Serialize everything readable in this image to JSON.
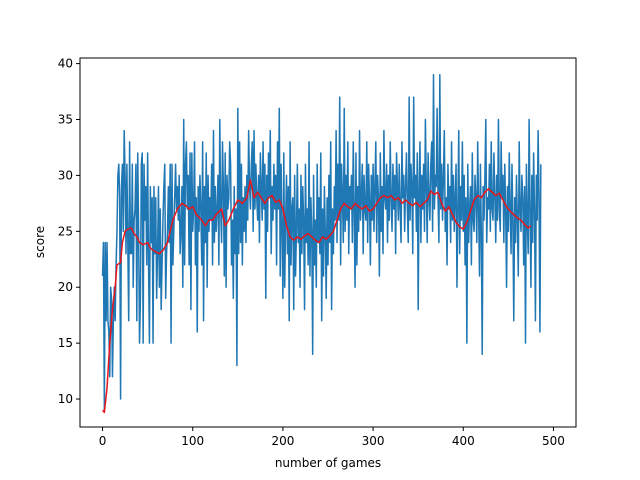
{
  "chart_data": {
    "type": "line",
    "title": "",
    "xlabel": "number of games",
    "ylabel": "score",
    "xlim": [
      -25,
      525
    ],
    "ylim": [
      7.5,
      40.5
    ],
    "xticks": [
      0,
      100,
      200,
      300,
      400,
      500
    ],
    "yticks": [
      10,
      15,
      20,
      25,
      30,
      35,
      40
    ],
    "grid": false,
    "series": [
      {
        "color": "#1f77b4",
        "style": "raw",
        "x_start": 0,
        "x_step": 1,
        "values": [
          21,
          24,
          9,
          24,
          17,
          24,
          17,
          16,
          12,
          20,
          19,
          12,
          17,
          20,
          17,
          22,
          25,
          30,
          31,
          28,
          10,
          29,
          31,
          25,
          34,
          30,
          23,
          31,
          24,
          17,
          33,
          23,
          23,
          31,
          20,
          26,
          27,
          31,
          17,
          32,
          25,
          15,
          19,
          31,
          32,
          15,
          31,
          26,
          29,
          22,
          32,
          22,
          15,
          29,
          24,
          28,
          15,
          29,
          23,
          28,
          19,
          23,
          29,
          20,
          27,
          18,
          22,
          26,
          29,
          31,
          19,
          23,
          25,
          29,
          24,
          31,
          15,
          31,
          22,
          25,
          28,
          31,
          27,
          29,
          26,
          30,
          23,
          25,
          29,
          20,
          35,
          22,
          31,
          33,
          27,
          30,
          22,
          32,
          18,
          32,
          25,
          27,
          33,
          22,
          28,
          16,
          29,
          25,
          30,
          27,
          22,
          33,
          17,
          29,
          24,
          32,
          20,
          30,
          25,
          28,
          26,
          31,
          22,
          34,
          24,
          29,
          25,
          27,
          30,
          22,
          35,
          27,
          24,
          33,
          29,
          21,
          32,
          20,
          30,
          27,
          28,
          33,
          31,
          22,
          26,
          19,
          29,
          23,
          27,
          13,
          36,
          23,
          33,
          24,
          31,
          22,
          28,
          25,
          29,
          24,
          30,
          26,
          34,
          29,
          27,
          31,
          33,
          25,
          34,
          27,
          31,
          28,
          26,
          30,
          24,
          32,
          29,
          26,
          33,
          27,
          31,
          19,
          30,
          25,
          32,
          28,
          34,
          23,
          29,
          26,
          31,
          27,
          30,
          22,
          33,
          27,
          36,
          21,
          31,
          25,
          19,
          32,
          20,
          26,
          30,
          23,
          29,
          17,
          33,
          22,
          27,
          28,
          18,
          30,
          21,
          25,
          31,
          24,
          27,
          20,
          30,
          23,
          29,
          26,
          18,
          31,
          24,
          27,
          22,
          33,
          21,
          28,
          25,
          14,
          30,
          22,
          26,
          20,
          31,
          24,
          28,
          23,
          32,
          17,
          27,
          21,
          29,
          25,
          19,
          28,
          22,
          30,
          24,
          33,
          18,
          27,
          23,
          29,
          26,
          34,
          24,
          31,
          26,
          37,
          22,
          31,
          28,
          24,
          36,
          25,
          30,
          26,
          33,
          23,
          29,
          27,
          30,
          24,
          33,
          27,
          20,
          32,
          22,
          29,
          25,
          34,
          26,
          28,
          31,
          23,
          30,
          27,
          26,
          33,
          24,
          31,
          28,
          22,
          30,
          26,
          31,
          25,
          29,
          33,
          24,
          30,
          28,
          21,
          32,
          25,
          29,
          23,
          34,
          28,
          27,
          31,
          24,
          30,
          26,
          33,
          28,
          25,
          31,
          27,
          30,
          23,
          32,
          29,
          26,
          31,
          27,
          24,
          33,
          28,
          30,
          25,
          29,
          32,
          27,
          24,
          37,
          26,
          31,
          29,
          23,
          37,
          28,
          30,
          25,
          32,
          18,
          29,
          33,
          24,
          30,
          27,
          31,
          25,
          35,
          29,
          24,
          32,
          28,
          26,
          31,
          33,
          25,
          39,
          27,
          30,
          29,
          36,
          28,
          24,
          39,
          27,
          31,
          26,
          30,
          34,
          25,
          28,
          22,
          31,
          27,
          29,
          24,
          33,
          26,
          30,
          25,
          28,
          31,
          20,
          27,
          34,
          23,
          29,
          26,
          33,
          25,
          30,
          22,
          28,
          15,
          31,
          24,
          27,
          29,
          22,
          32,
          26,
          25,
          30,
          28,
          24,
          33,
          27,
          21,
          31,
          25,
          14,
          29,
          26,
          30,
          35,
          24,
          28,
          27,
          31,
          25,
          33,
          27,
          26,
          32,
          28,
          24,
          30,
          26,
          35,
          27,
          25,
          33,
          28,
          30,
          24,
          31,
          27,
          20,
          29,
          25,
          32,
          27,
          23,
          31,
          26,
          17,
          28,
          24,
          30,
          26,
          21,
          33,
          27,
          25,
          30,
          28,
          22,
          29,
          15,
          31,
          26,
          23,
          35,
          27,
          20,
          30,
          24,
          32,
          27,
          17,
          30,
          26,
          34,
          28,
          16,
          31
        ]
      },
      {
        "color": "#e8161b",
        "style": "smoothed",
        "points": [
          [
            0,
            9
          ],
          [
            2,
            8.8
          ],
          [
            5,
            11
          ],
          [
            8,
            15
          ],
          [
            11,
            18
          ],
          [
            14,
            20
          ],
          [
            16,
            22
          ],
          [
            20,
            22.2
          ],
          [
            22,
            24
          ],
          [
            25,
            25
          ],
          [
            28,
            25.2
          ],
          [
            32,
            25.3
          ],
          [
            35,
            24.8
          ],
          [
            38,
            24.5
          ],
          [
            41,
            24
          ],
          [
            45,
            23.8
          ],
          [
            50,
            24
          ],
          [
            53,
            23.5
          ],
          [
            58,
            23.2
          ],
          [
            63,
            23
          ],
          [
            67,
            23.3
          ],
          [
            72,
            24
          ],
          [
            78,
            26
          ],
          [
            83,
            27
          ],
          [
            88,
            27.5
          ],
          [
            92,
            27.3
          ],
          [
            96,
            27
          ],
          [
            100,
            27.2
          ],
          [
            104,
            26.5
          ],
          [
            110,
            26
          ],
          [
            114,
            25.5
          ],
          [
            118,
            26
          ],
          [
            122,
            26
          ],
          [
            126,
            26.5
          ],
          [
            132,
            27
          ],
          [
            136,
            25.5
          ],
          [
            140,
            26
          ],
          [
            145,
            27
          ],
          [
            150,
            27.8
          ],
          [
            155,
            27.5
          ],
          [
            160,
            28
          ],
          [
            164,
            29.6
          ],
          [
            168,
            28
          ],
          [
            172,
            28.5
          ],
          [
            176,
            28
          ],
          [
            180,
            27.5
          ],
          [
            184,
            28
          ],
          [
            188,
            28.2
          ],
          [
            192,
            27.6
          ],
          [
            196,
            27.8
          ],
          [
            200,
            27
          ],
          [
            204,
            25.5
          ],
          [
            208,
            24.5
          ],
          [
            212,
            24.2
          ],
          [
            216,
            24.5
          ],
          [
            220,
            24.3
          ],
          [
            224,
            24.6
          ],
          [
            228,
            24.8
          ],
          [
            232,
            24.5
          ],
          [
            236,
            24.2
          ],
          [
            240,
            24
          ],
          [
            244,
            24.5
          ],
          [
            248,
            24.3
          ],
          [
            252,
            24.6
          ],
          [
            256,
            25
          ],
          [
            260,
            26
          ],
          [
            264,
            27
          ],
          [
            268,
            27.5
          ],
          [
            272,
            27.2
          ],
          [
            276,
            27
          ],
          [
            280,
            27.5
          ],
          [
            284,
            27.2
          ],
          [
            288,
            27
          ],
          [
            292,
            27.3
          ],
          [
            296,
            26.8
          ],
          [
            300,
            27
          ],
          [
            304,
            27.5
          ],
          [
            308,
            28
          ],
          [
            312,
            28.2
          ],
          [
            316,
            28
          ],
          [
            320,
            28.2
          ],
          [
            324,
            27.8
          ],
          [
            328,
            28
          ],
          [
            332,
            27.5
          ],
          [
            336,
            27.8
          ],
          [
            340,
            27.5
          ],
          [
            344,
            27.3
          ],
          [
            348,
            27.6
          ],
          [
            352,
            27.2
          ],
          [
            356,
            27.5
          ],
          [
            360,
            27.8
          ],
          [
            364,
            28.6
          ],
          [
            368,
            28.3
          ],
          [
            372,
            28.5
          ],
          [
            376,
            27.5
          ],
          [
            380,
            26.8
          ],
          [
            384,
            27.2
          ],
          [
            388,
            26.5
          ],
          [
            392,
            25.8
          ],
          [
            396,
            25.4
          ],
          [
            400,
            25.2
          ],
          [
            404,
            25.8
          ],
          [
            408,
            26.8
          ],
          [
            412,
            27.8
          ],
          [
            416,
            28.2
          ],
          [
            420,
            28
          ],
          [
            424,
            28.5
          ],
          [
            428,
            28.8
          ],
          [
            432,
            28.5
          ],
          [
            436,
            28.2
          ],
          [
            440,
            28.4
          ],
          [
            444,
            27.8
          ],
          [
            448,
            27.2
          ],
          [
            452,
            26.8
          ],
          [
            456,
            26.5
          ],
          [
            460,
            26.2
          ],
          [
            464,
            26
          ],
          [
            468,
            25.6
          ],
          [
            472,
            25.3
          ],
          [
            475,
            25.5
          ]
        ]
      }
    ]
  }
}
